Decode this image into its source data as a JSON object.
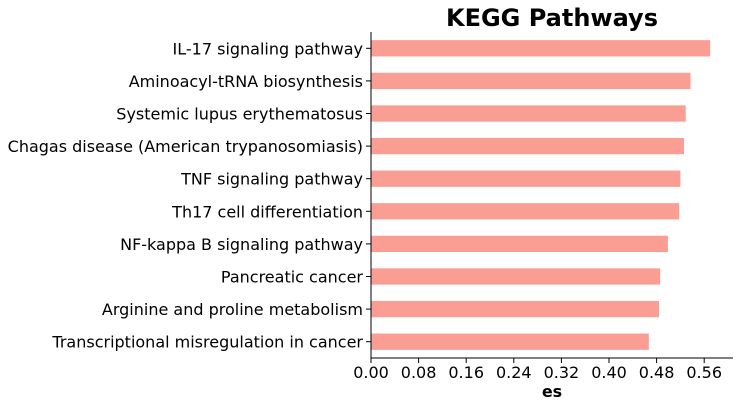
{
  "chart_data": {
    "type": "bar",
    "orientation": "horizontal",
    "title": "KEGG Pathways",
    "xlabel": "es",
    "ylabel": "",
    "categories": [
      "IL-17 signaling pathway",
      "Aminoacyl-tRNA biosynthesis",
      "Systemic lupus erythematosus",
      "Chagas disease (American trypanosomiasis)",
      "TNF signaling pathway",
      "Th17 cell differentiation",
      "NF-kappa B signaling pathway",
      "Pancreatic cancer",
      "Arginine and proline metabolism",
      "Transcriptional misregulation in cancer"
    ],
    "values": [
      0.57,
      0.537,
      0.529,
      0.526,
      0.52,
      0.518,
      0.499,
      0.486,
      0.484,
      0.467
    ],
    "xticks": [
      "0.00",
      "0.08",
      "0.16",
      "0.24",
      "0.32",
      "0.40",
      "0.48",
      "0.56"
    ],
    "xlim": [
      0,
      0.6
    ],
    "bar_color": "#fa9e94",
    "grid": false,
    "legend": "none"
  }
}
